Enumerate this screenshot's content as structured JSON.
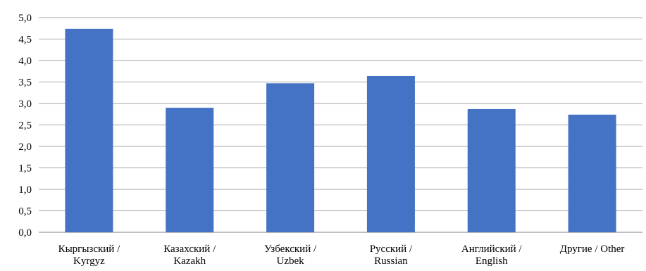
{
  "chart_data": {
    "type": "bar",
    "categories": [
      [
        "Кыргызский /",
        "Kyrgyz"
      ],
      [
        "Казахский /",
        "Kazakh"
      ],
      [
        "Узбекский /",
        "Uzbek"
      ],
      [
        "Русский /",
        "Russian"
      ],
      [
        "Английский /",
        "English"
      ],
      [
        "Другие / Other"
      ]
    ],
    "values": [
      4.74,
      2.9,
      3.47,
      3.64,
      2.87,
      2.74
    ],
    "title": "",
    "xlabel": "",
    "ylabel": "",
    "ylim": [
      0,
      5
    ],
    "yticks": [
      "0,0",
      "0,5",
      "1,0",
      "1,5",
      "2,0",
      "2,5",
      "3,0",
      "3,5",
      "4,0",
      "4,5",
      "5,0"
    ],
    "grid": true,
    "legend": "none",
    "bar_color": "#4472C4",
    "grid_color": "#A6A6A6"
  }
}
